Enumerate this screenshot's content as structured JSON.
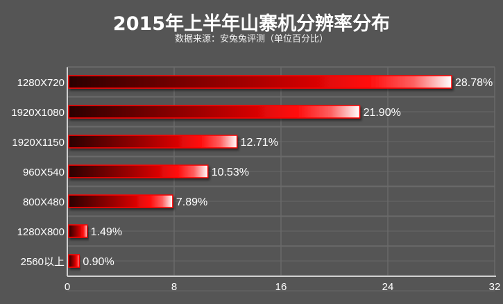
{
  "chart_data": {
    "type": "bar",
    "orientation": "horizontal",
    "title": "2015年上半年山寨机分辨率分布",
    "subtitle": "数据来源：安兔兔评测（单位百分比）",
    "categories": [
      "1280X720",
      "1920X1080",
      "1920X1150",
      "960X540",
      "800X480",
      "1280X800",
      "2560以上"
    ],
    "values": [
      28.78,
      21.9,
      12.71,
      10.53,
      7.89,
      1.49,
      0.9
    ],
    "data_labels": [
      "28.78%",
      "21.90%",
      "12.71%",
      "10.53%",
      "7.89%",
      "1.49%",
      "0.90%"
    ],
    "xlim": [
      0,
      32
    ],
    "x_ticks": [
      "0",
      "8",
      "16",
      "24",
      "32"
    ],
    "x_tick_values": [
      0,
      8,
      16,
      24,
      32
    ],
    "grid": true,
    "colors": {
      "background": "#555555",
      "bar_dark": "#2a0000",
      "bar_mid": "#ff0000",
      "bar_light": "#ffffff",
      "grid": "#6a6a6a",
      "axis": "#d0d0d0"
    }
  }
}
